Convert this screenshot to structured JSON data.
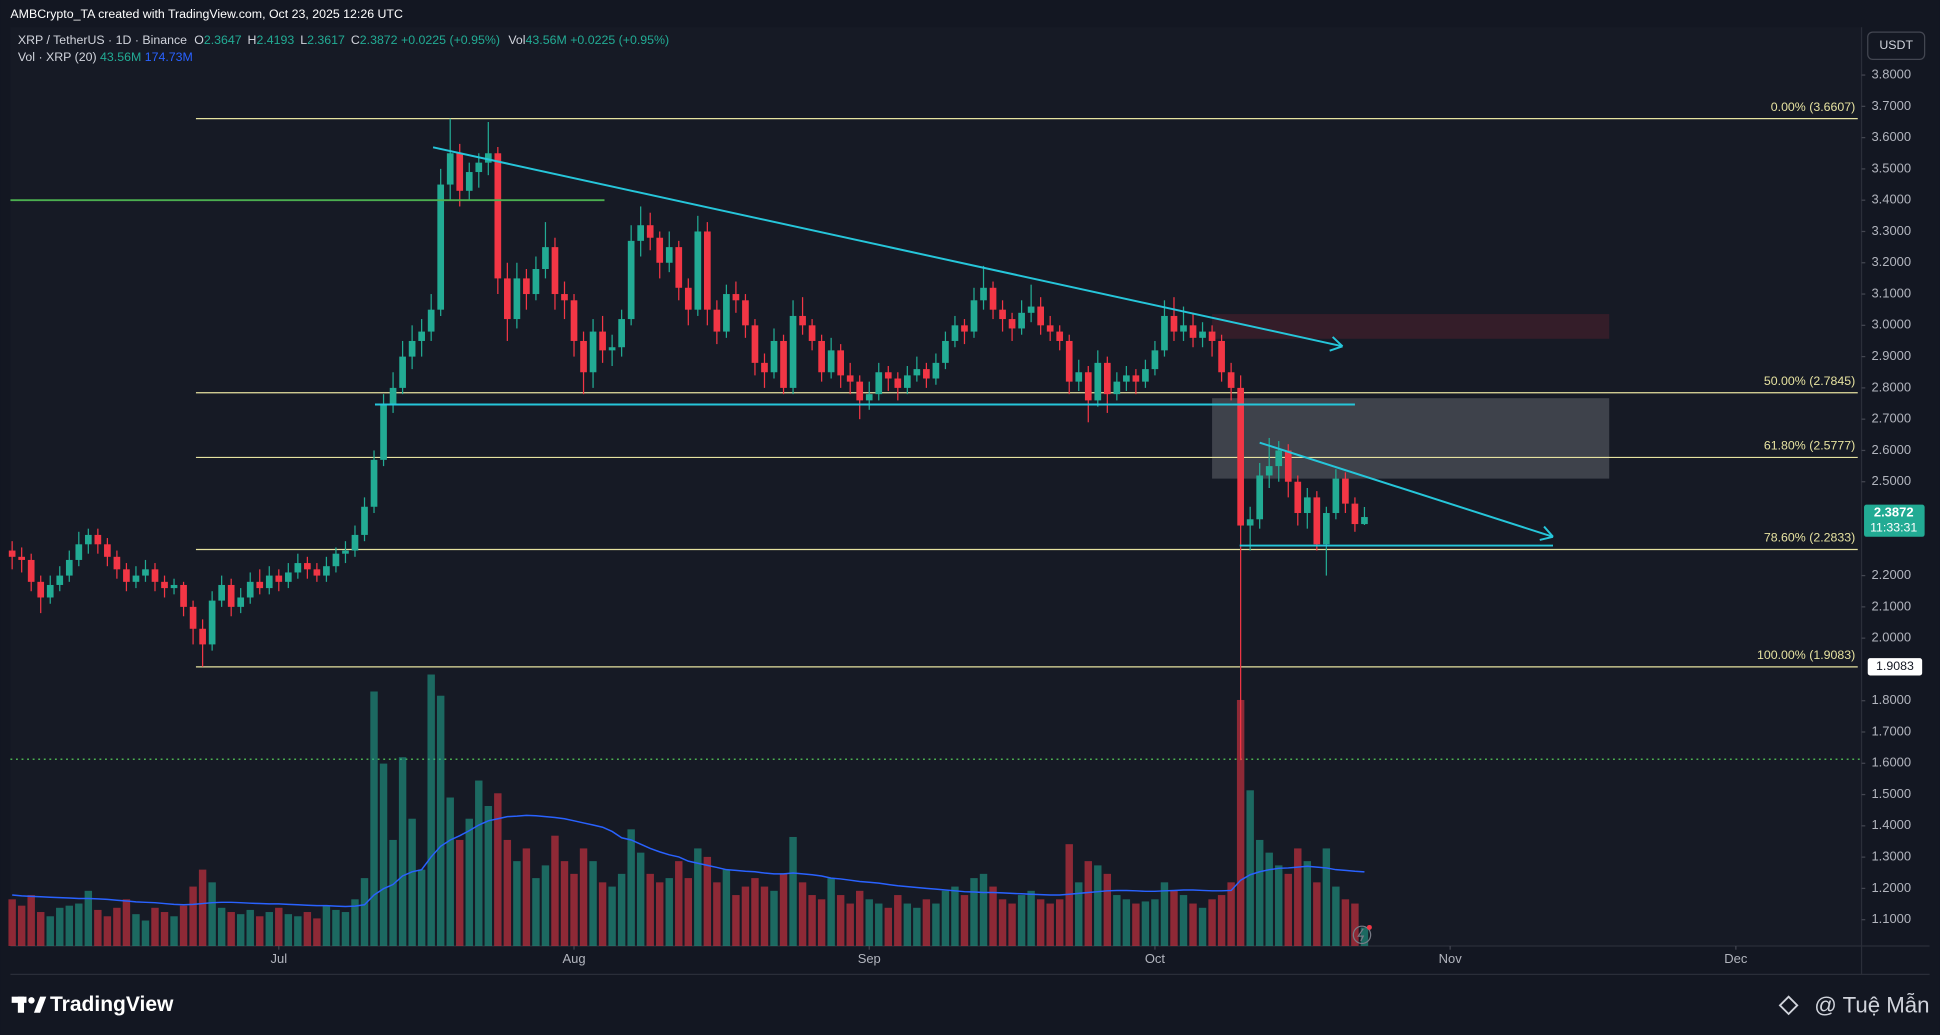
{
  "header": {
    "credit": "AMBCrypto_TA created with TradingView.com, Oct 23, 2025 12:26 UTC",
    "symbol": "XRP / TetherUS · 1D · Binance",
    "ohlc_labels": [
      "O",
      "H",
      "L",
      "C"
    ],
    "change": "+0.0225 (+0.95%)",
    "vol_prefix": "Vol",
    "vol_study": "Vol · XRP (20)",
    "currency": "USDT",
    "countdown": "11:33:31"
  },
  "chart_data": {
    "type": "candlestick",
    "up_color": "#22ab94",
    "down_color": "#f23645",
    "candles": [
      [
        2.28,
        2.31,
        2.22,
        2.26
      ],
      [
        2.26,
        2.29,
        2.21,
        2.25
      ],
      [
        2.25,
        2.27,
        2.15,
        2.18
      ],
      [
        2.18,
        2.2,
        2.08,
        2.13
      ],
      [
        2.13,
        2.2,
        2.11,
        2.17
      ],
      [
        2.17,
        2.23,
        2.15,
        2.2
      ],
      [
        2.2,
        2.28,
        2.18,
        2.25
      ],
      [
        2.25,
        2.34,
        2.23,
        2.3
      ],
      [
        2.3,
        2.35,
        2.27,
        2.33
      ],
      [
        2.33,
        2.35,
        2.27,
        2.3
      ],
      [
        2.3,
        2.32,
        2.23,
        2.26
      ],
      [
        2.26,
        2.28,
        2.19,
        2.22
      ],
      [
        2.22,
        2.24,
        2.15,
        2.18
      ],
      [
        2.18,
        2.23,
        2.16,
        2.2
      ],
      [
        2.2,
        2.25,
        2.18,
        2.22
      ],
      [
        2.22,
        2.24,
        2.15,
        2.18
      ],
      [
        2.18,
        2.2,
        2.13,
        2.16
      ],
      [
        2.16,
        2.19,
        2.14,
        2.17
      ],
      [
        2.17,
        2.18,
        2.07,
        2.1
      ],
      [
        2.1,
        2.12,
        1.98,
        2.03
      ],
      [
        2.03,
        2.06,
        1.9083,
        1.98
      ],
      [
        1.98,
        2.15,
        1.96,
        2.12
      ],
      [
        2.12,
        2.2,
        2.1,
        2.17
      ],
      [
        2.17,
        2.19,
        2.07,
        2.1
      ],
      [
        2.1,
        2.16,
        2.08,
        2.13
      ],
      [
        2.13,
        2.21,
        2.11,
        2.18
      ],
      [
        2.18,
        2.22,
        2.14,
        2.16
      ],
      [
        2.16,
        2.23,
        2.14,
        2.2
      ],
      [
        2.2,
        2.22,
        2.15,
        2.18
      ],
      [
        2.18,
        2.24,
        2.16,
        2.21
      ],
      [
        2.21,
        2.27,
        2.19,
        2.24
      ],
      [
        2.24,
        2.26,
        2.19,
        2.22
      ],
      [
        2.22,
        2.24,
        2.18,
        2.2
      ],
      [
        2.2,
        2.26,
        2.18,
        2.23
      ],
      [
        2.23,
        2.29,
        2.21,
        2.27
      ],
      [
        2.27,
        2.31,
        2.24,
        2.28
      ],
      [
        2.28,
        2.36,
        2.26,
        2.33
      ],
      [
        2.33,
        2.45,
        2.31,
        2.42
      ],
      [
        2.42,
        2.6,
        2.4,
        2.57
      ],
      [
        2.57,
        2.78,
        2.55,
        2.75
      ],
      [
        2.75,
        2.85,
        2.72,
        2.8
      ],
      [
        2.8,
        2.95,
        2.78,
        2.9
      ],
      [
        2.9,
        3.0,
        2.86,
        2.95
      ],
      [
        2.95,
        3.02,
        2.9,
        2.98
      ],
      [
        2.98,
        3.1,
        2.95,
        3.05
      ],
      [
        3.05,
        3.5,
        3.03,
        3.45
      ],
      [
        3.45,
        3.6607,
        3.4,
        3.55
      ],
      [
        3.55,
        3.58,
        3.38,
        3.43
      ],
      [
        3.43,
        3.52,
        3.4,
        3.49
      ],
      [
        3.49,
        3.55,
        3.44,
        3.52
      ],
      [
        3.52,
        3.65,
        3.48,
        3.55
      ],
      [
        3.55,
        3.57,
        3.1,
        3.15
      ],
      [
        3.15,
        3.2,
        2.95,
        3.02
      ],
      [
        3.02,
        3.2,
        2.99,
        3.15
      ],
      [
        3.15,
        3.18,
        3.05,
        3.1
      ],
      [
        3.1,
        3.22,
        3.08,
        3.18
      ],
      [
        3.18,
        3.33,
        3.15,
        3.25
      ],
      [
        3.25,
        3.28,
        3.05,
        3.1
      ],
      [
        3.1,
        3.14,
        3.02,
        3.08
      ],
      [
        3.08,
        3.1,
        2.9,
        2.95
      ],
      [
        2.95,
        2.98,
        2.78,
        2.85
      ],
      [
        2.85,
        3.02,
        2.8,
        2.98
      ],
      [
        2.98,
        3.03,
        2.88,
        2.92
      ],
      [
        2.92,
        2.97,
        2.87,
        2.93
      ],
      [
        2.93,
        3.05,
        2.9,
        3.02
      ],
      [
        3.02,
        3.32,
        3.0,
        3.27
      ],
      [
        3.27,
        3.38,
        3.22,
        3.32
      ],
      [
        3.32,
        3.36,
        3.24,
        3.28
      ],
      [
        3.28,
        3.3,
        3.15,
        3.2
      ],
      [
        3.2,
        3.3,
        3.17,
        3.25
      ],
      [
        3.25,
        3.27,
        3.08,
        3.12
      ],
      [
        3.12,
        3.15,
        3.0,
        3.05
      ],
      [
        3.05,
        3.35,
        3.03,
        3.3
      ],
      [
        3.3,
        3.33,
        3.0,
        3.05
      ],
      [
        3.05,
        3.08,
        2.94,
        2.98
      ],
      [
        2.98,
        3.13,
        2.96,
        3.1
      ],
      [
        3.1,
        3.14,
        3.04,
        3.08
      ],
      [
        3.08,
        3.1,
        2.96,
        3.0
      ],
      [
        3.0,
        3.02,
        2.84,
        2.88
      ],
      [
        2.88,
        2.91,
        2.8,
        2.85
      ],
      [
        2.85,
        2.99,
        2.83,
        2.95
      ],
      [
        2.95,
        2.97,
        2.78,
        2.8
      ],
      [
        2.8,
        3.08,
        2.78,
        3.03
      ],
      [
        3.03,
        3.09,
        2.97,
        3.0
      ],
      [
        3.0,
        3.02,
        2.92,
        2.95
      ],
      [
        2.95,
        2.97,
        2.82,
        2.85
      ],
      [
        2.85,
        2.96,
        2.83,
        2.92
      ],
      [
        2.92,
        2.94,
        2.8,
        2.84
      ],
      [
        2.84,
        2.88,
        2.78,
        2.82
      ],
      [
        2.82,
        2.84,
        2.7,
        2.76
      ],
      [
        2.76,
        2.82,
        2.73,
        2.78
      ],
      [
        2.78,
        2.88,
        2.76,
        2.85
      ],
      [
        2.85,
        2.87,
        2.79,
        2.83
      ],
      [
        2.83,
        2.85,
        2.76,
        2.8
      ],
      [
        2.8,
        2.87,
        2.78,
        2.84
      ],
      [
        2.84,
        2.9,
        2.82,
        2.86
      ],
      [
        2.86,
        2.88,
        2.8,
        2.83
      ],
      [
        2.83,
        2.91,
        2.81,
        2.88
      ],
      [
        2.88,
        2.98,
        2.86,
        2.95
      ],
      [
        2.95,
        3.03,
        2.93,
        3.0
      ],
      [
        3.0,
        3.02,
        2.94,
        2.98
      ],
      [
        2.98,
        3.12,
        2.96,
        3.08
      ],
      [
        3.08,
        3.19,
        3.05,
        3.12
      ],
      [
        3.12,
        3.14,
        3.02,
        3.05
      ],
      [
        3.05,
        3.08,
        2.98,
        3.02
      ],
      [
        3.02,
        3.04,
        2.95,
        2.99
      ],
      [
        2.99,
        3.08,
        2.97,
        3.04
      ],
      [
        3.04,
        3.13,
        3.01,
        3.06
      ],
      [
        3.06,
        3.09,
        2.97,
        3.0
      ],
      [
        3.0,
        3.03,
        2.95,
        2.98
      ],
      [
        2.98,
        3.0,
        2.92,
        2.95
      ],
      [
        2.95,
        2.97,
        2.78,
        2.82
      ],
      [
        2.82,
        2.89,
        2.79,
        2.85
      ],
      [
        2.85,
        2.87,
        2.69,
        2.76
      ],
      [
        2.76,
        2.92,
        2.74,
        2.88
      ],
      [
        2.88,
        2.9,
        2.72,
        2.78
      ],
      [
        2.78,
        2.85,
        2.76,
        2.82
      ],
      [
        2.82,
        2.87,
        2.79,
        2.84
      ],
      [
        2.84,
        2.86,
        2.78,
        2.82
      ],
      [
        2.82,
        2.89,
        2.8,
        2.86
      ],
      [
        2.86,
        2.95,
        2.84,
        2.92
      ],
      [
        2.92,
        3.08,
        2.9,
        3.03
      ],
      [
        3.03,
        3.09,
        2.95,
        2.98
      ],
      [
        2.98,
        3.06,
        2.95,
        3.0
      ],
      [
        3.0,
        3.04,
        2.93,
        2.96
      ],
      [
        2.96,
        3.01,
        2.93,
        2.98
      ],
      [
        2.98,
        3.0,
        2.9,
        2.95
      ],
      [
        2.95,
        2.97,
        2.82,
        2.85
      ],
      [
        2.85,
        2.88,
        2.76,
        2.8
      ],
      [
        2.8,
        2.84,
        1.61,
        2.36
      ],
      [
        2.36,
        2.42,
        2.28,
        2.38
      ],
      [
        2.38,
        2.56,
        2.35,
        2.52
      ],
      [
        2.52,
        2.64,
        2.48,
        2.55
      ],
      [
        2.55,
        2.63,
        2.5,
        2.6
      ],
      [
        2.6,
        2.62,
        2.45,
        2.5
      ],
      [
        2.5,
        2.52,
        2.36,
        2.4
      ],
      [
        2.4,
        2.48,
        2.35,
        2.45
      ],
      [
        2.45,
        2.47,
        2.28,
        2.3
      ],
      [
        2.3,
        2.42,
        2.2,
        2.4
      ],
      [
        2.4,
        2.54,
        2.38,
        2.51
      ],
      [
        2.51,
        2.53,
        2.4,
        2.43
      ],
      [
        2.43,
        2.45,
        2.34,
        2.3647
      ],
      [
        2.3647,
        2.4193,
        2.3617,
        2.3872
      ]
    ],
    "volume": [
      110,
      95,
      120,
      80,
      70,
      90,
      95,
      100,
      130,
      85,
      70,
      90,
      110,
      75,
      60,
      90,
      80,
      70,
      95,
      140,
      180,
      150,
      90,
      80,
      75,
      85,
      70,
      80,
      90,
      75,
      70,
      80,
      65,
      95,
      85,
      80,
      110,
      160,
      600,
      430,
      250,
      445,
      300,
      180,
      640,
      590,
      350,
      250,
      300,
      390,
      330,
      360,
      250,
      200,
      230,
      160,
      190,
      260,
      200,
      170,
      230,
      200,
      150,
      140,
      170,
      275,
      220,
      170,
      150,
      160,
      200,
      160,
      230,
      210,
      150,
      180,
      120,
      140,
      160,
      140,
      130,
      170,
      257,
      150,
      120,
      110,
      160,
      120,
      100,
      130,
      110,
      100,
      90,
      120,
      100,
      90,
      110,
      100,
      130,
      140,
      120,
      160,
      170,
      140,
      110,
      100,
      120,
      130,
      110,
      100,
      110,
      240,
      150,
      200,
      190,
      170,
      120,
      110,
      100,
      105,
      110,
      150,
      130,
      120,
      100,
      90,
      110,
      120,
      150,
      580,
      367,
      250,
      220,
      190,
      170,
      230,
      200,
      150,
      230,
      140,
      110,
      100,
      43.56
    ],
    "volume_label": "43.56M",
    "volume_ma": [
      120,
      118,
      117,
      116,
      115,
      114,
      113,
      112,
      112,
      111,
      110,
      108,
      106,
      104,
      103,
      102,
      100,
      98,
      97,
      98,
      100,
      102,
      103,
      103,
      102,
      101,
      100,
      99,
      99,
      98,
      97,
      96,
      95,
      95,
      94,
      93,
      94,
      97,
      120,
      135,
      145,
      165,
      175,
      180,
      210,
      235,
      250,
      260,
      272,
      285,
      295,
      300,
      305,
      306,
      308,
      307,
      305,
      303,
      300,
      295,
      290,
      285,
      280,
      270,
      255,
      250,
      240,
      230,
      222,
      215,
      210,
      200,
      195,
      190,
      185,
      180,
      178,
      176,
      175,
      172,
      170,
      170,
      172,
      170,
      168,
      165,
      160,
      158,
      155,
      152,
      150,
      148,
      145,
      142,
      140,
      138,
      136,
      134,
      132,
      130,
      128,
      127,
      126,
      126,
      125,
      124,
      123,
      122,
      121,
      120,
      120,
      122,
      124,
      126,
      128,
      130,
      131,
      131,
      130,
      129,
      129,
      130,
      131,
      132,
      132,
      131,
      130,
      130,
      131,
      155,
      168,
      175,
      180,
      183,
      184,
      186,
      188,
      186,
      184,
      180,
      178,
      176,
      174.73
    ],
    "volume_ma_label": "174.73M",
    "volume_ma_color": "#2962ff",
    "vlim": [
      0,
      1000
    ],
    "xlim": [
      -0.18,
      194.2
    ],
    "xticks": [
      {
        "value": 28,
        "label": "Jul"
      },
      {
        "value": 59,
        "label": "Aug"
      },
      {
        "value": 90,
        "label": "Sep"
      },
      {
        "value": 120,
        "label": "Oct"
      },
      {
        "value": 151,
        "label": "Nov"
      },
      {
        "value": 181,
        "label": "Dec"
      }
    ],
    "ylim": [
      1.016,
      3.953
    ],
    "yticks": [
      {
        "value": 3.8,
        "label": "3.8000"
      },
      {
        "value": 3.7,
        "label": "3.7000"
      },
      {
        "value": 3.6,
        "label": "3.6000"
      },
      {
        "value": 3.5,
        "label": "3.5000"
      },
      {
        "value": 3.4,
        "label": "3.4000"
      },
      {
        "value": 3.3,
        "label": "3.3000"
      },
      {
        "value": 3.2,
        "label": "3.2000"
      },
      {
        "value": 3.1,
        "label": "3.1000"
      },
      {
        "value": 3.0,
        "label": "3.0000"
      },
      {
        "value": 2.9,
        "label": "2.9000"
      },
      {
        "value": 2.8,
        "label": "2.8000"
      },
      {
        "value": 2.7,
        "label": "2.7000"
      },
      {
        "value": 2.6,
        "label": "2.6000"
      },
      {
        "value": 2.5,
        "label": "2.5000"
      },
      {
        "value": 2.2,
        "label": "2.2000"
      },
      {
        "value": 2.1,
        "label": "2.1000"
      },
      {
        "value": 2.0,
        "label": "2.0000"
      },
      {
        "value": 1.8,
        "label": "1.8000"
      },
      {
        "value": 1.7,
        "label": "1.7000"
      },
      {
        "value": 1.6,
        "label": "1.6000"
      },
      {
        "value": 1.5,
        "label": "1.5000"
      },
      {
        "value": 1.4,
        "label": "1.4000"
      },
      {
        "value": 1.3,
        "label": "1.3000"
      },
      {
        "value": 1.2,
        "label": "1.2000"
      },
      {
        "value": 1.1,
        "label": "1.1000"
      }
    ],
    "grid": false,
    "fib_levels": [
      {
        "level": 3.6607,
        "label": "0.00% (3.6607)"
      },
      {
        "level": 2.7845,
        "label": "50.00% (2.7845)"
      },
      {
        "level": 2.5777,
        "label": "61.80% (2.5777)"
      },
      {
        "level": 2.2833,
        "label": "78.60% (2.2833)"
      },
      {
        "level": 1.9083,
        "label": "100.00% (1.9083)"
      }
    ],
    "fib_range": [
      19.3,
      193.8
    ],
    "fib_color": "#e6e2a0",
    "trend_lines": [
      {
        "from": [
          -0.18,
          3.4
        ],
        "to": [
          62.2,
          3.4
        ],
        "color": "#4caf50",
        "arrow": false
      },
      {
        "from": [
          44.2,
          3.569
        ],
        "to": [
          139.7,
          2.933
        ],
        "color": "#26c6da",
        "arrow": true
      },
      {
        "from": [
          38.1,
          2.747
        ],
        "to": [
          141,
          2.747
        ],
        "color": "#26c6da",
        "arrow": false
      },
      {
        "from": [
          131,
          2.625
        ],
        "to": [
          161.8,
          2.324
        ],
        "color": "#26c6da",
        "arrow": true
      },
      {
        "from": [
          128.9,
          2.296
        ],
        "to": [
          161.8,
          2.296
        ],
        "color": "#26c6da",
        "arrow": false
      }
    ],
    "zones": [
      {
        "x": [
          126,
          167.7
        ],
        "y": [
          2.957,
          3.036
        ],
        "color": "#4a1f2d"
      },
      {
        "x": [
          126,
          167.7
        ],
        "y": [
          2.51,
          2.767
        ],
        "color": "#5a5d66"
      }
    ],
    "dotted_level": {
      "value": 1.613,
      "color": "#4caf50"
    }
  },
  "footer": {
    "brand": "TradingView",
    "author": "@ Tuệ Mẫn"
  }
}
